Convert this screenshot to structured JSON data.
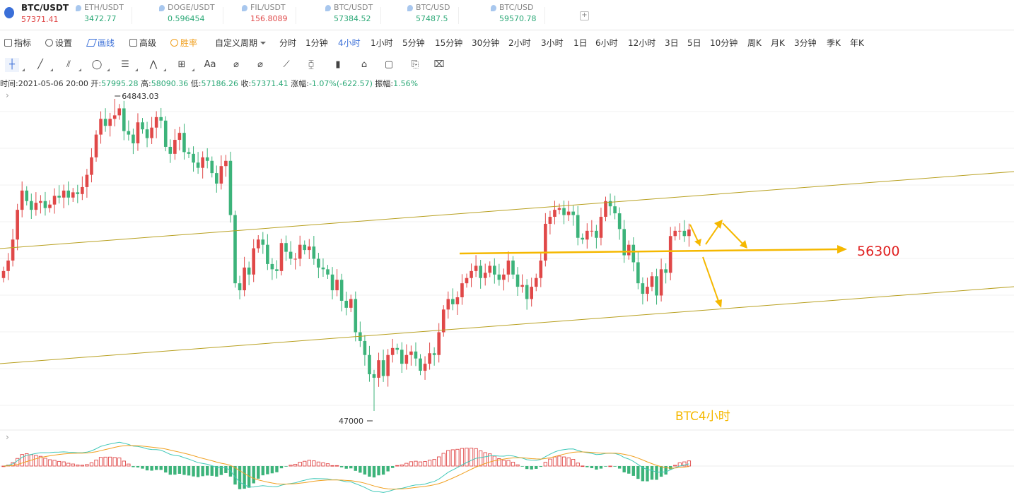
{
  "tabs": [
    {
      "name": "BTC/USDT",
      "price": "57371.41",
      "active": true
    },
    {
      "name": "ETH/USDT",
      "price": "3472.77",
      "color": "#2aa876"
    },
    {
      "name": "DOGE/USDT",
      "price": "0.596454",
      "color": "#2aa876"
    },
    {
      "name": "FIL/USDT",
      "price": "156.8089",
      "color": "#e04848"
    },
    {
      "name": "BTC/USDT",
      "price": "57384.52",
      "color": "#2aa876"
    },
    {
      "name": "BTC/USD",
      "price": "57487.5",
      "color": "#2aa876"
    },
    {
      "name": "BTC/USD",
      "price": "59570.78",
      "color": "#2aa876"
    }
  ],
  "add_tab": "+",
  "toolbar": {
    "indicator": "指标",
    "settings": "设置",
    "draw": "画线",
    "advanced": "高级",
    "winrate": "胜率",
    "custom_period": "自定义周期",
    "periods": [
      "分时",
      "1分钟",
      "4小时",
      "1小时",
      "5分钟",
      "15分钟",
      "30分钟",
      "2小时",
      "3小时",
      "1日",
      "6小时",
      "12小时",
      "3日",
      "5日",
      "10分钟",
      "周K",
      "月K",
      "3分钟",
      "季K",
      "年K"
    ],
    "selected_period": "4小时"
  },
  "drawing_tools": [
    "crosshair-icon",
    "trendline-icon",
    "parallel-channel-icon",
    "ellipse-icon",
    "fib-icon",
    "pattern-icon",
    "measure-icon",
    "text-icon",
    "ray-icon",
    "eraser-icon",
    "ruler-icon",
    "candle-icon",
    "lock-icon",
    "copy-icon",
    "template-icon",
    "trash-icon"
  ],
  "text_tool_label": "Aa",
  "info": {
    "time_label": "时间:",
    "time": "2021-05-06 20:00",
    "open_label": "开:",
    "open": "57995.28",
    "high_label": "高:",
    "high": "58090.36",
    "low_label": "低:",
    "low": "57186.26",
    "close_label": "收:",
    "close": "57371.41",
    "change_label": "涨幅:",
    "change": "-1.07%(-622.57)",
    "amp_label": "振幅:",
    "amp": "1.56%"
  },
  "annotations": {
    "high_marker": "64843.03",
    "low_marker": "47000",
    "level_label": "56300",
    "chart_label": "BTC4小时"
  },
  "colors": {
    "up": "#e04848",
    "down": "#3cb37a",
    "channel": "#b8a020",
    "arrow": "#f5b800",
    "level_text": "#e02020",
    "macd_fast": "#f0a020",
    "macd_slow": "#40c8b8",
    "accent": "#3a6fd8"
  },
  "chart_data": {
    "type": "candlestick",
    "timeframe": "4小时",
    "symbol": "BTC/USDT",
    "price_high_label": 64843.03,
    "price_low_label": 47000,
    "key_level": 56300,
    "closes": [
      55000,
      55600,
      56800,
      58500,
      59600,
      59000,
      58500,
      58900,
      59000,
      58600,
      58800,
      59300,
      59200,
      59600,
      59200,
      59500,
      59400,
      59800,
      60500,
      61500,
      62800,
      63700,
      63300,
      63700,
      63900,
      64300,
      63000,
      62800,
      62300,
      63500,
      63100,
      62600,
      63200,
      63800,
      63600,
      62100,
      61700,
      62500,
      62900,
      61800,
      61700,
      61200,
      60900,
      61500,
      61300,
      60600,
      60000,
      61000,
      61300,
      58200,
      54300,
      53900,
      55200,
      54800,
      56300,
      56800,
      56500,
      55400,
      55100,
      55000,
      56600,
      56100,
      55700,
      55700,
      56500,
      56200,
      56400,
      55700,
      55200,
      55100,
      54800,
      53900,
      54500,
      53300,
      52900,
      53400,
      51500,
      51000,
      50200,
      49100,
      48900,
      49900,
      49000,
      50200,
      50600,
      50500,
      49700,
      50200,
      50400,
      50000,
      49300,
      49700,
      50300,
      50200,
      51500,
      52800,
      53400,
      53100,
      53500,
      54300,
      54600,
      55000,
      55300,
      54600,
      54900,
      55300,
      54800,
      54500,
      54800,
      55600,
      54800,
      54100,
      54200,
      53400,
      54100,
      54600,
      55600,
      57700,
      58100,
      58500,
      58600,
      58200,
      58400,
      58200,
      56900,
      56800,
      57300,
      57300,
      56900,
      58100,
      59000,
      58700,
      58300,
      57400,
      55900,
      56500,
      55500,
      54300,
      53700,
      54100,
      54700,
      53600,
      55100,
      54900,
      57000,
      57300,
      57300,
      57000,
      57371.41
    ]
  }
}
